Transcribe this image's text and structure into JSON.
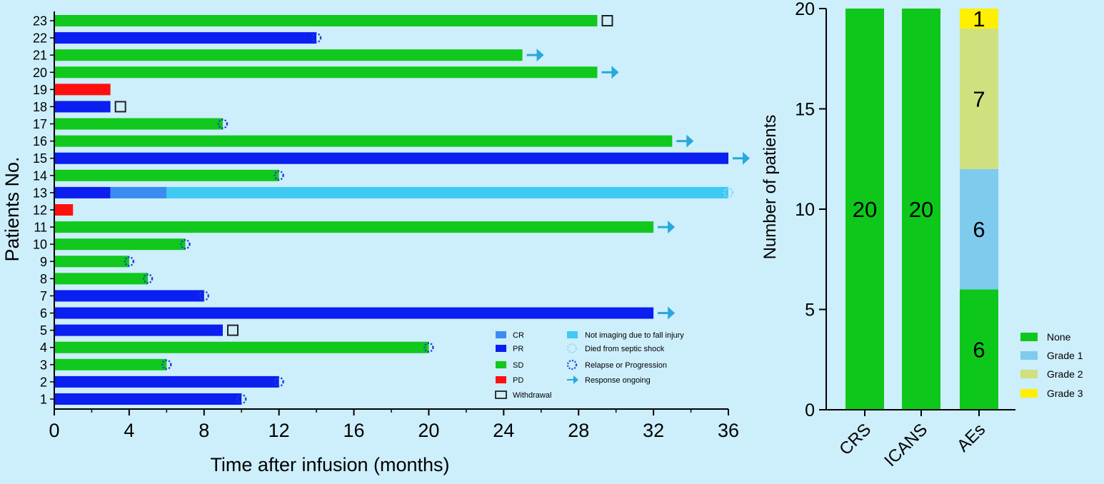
{
  "chart_data": [
    {
      "type": "swimmer",
      "xlabel": "Time after infusion (months)",
      "ylabel": "Patients No.",
      "xlim": [
        0,
        36
      ],
      "xticks": [
        0,
        4,
        8,
        12,
        16,
        20,
        24,
        28,
        32,
        36
      ],
      "colors": {
        "CR": "#3b8cf0",
        "PR": "#0a1ff0",
        "SD": "#11c81d",
        "PD": "#ff1010",
        "NI": "#3ecaf5",
        "septic": "#8ad8f3",
        "relapse": "#1a3ed8",
        "arrow": "#29a8dc",
        "withdrawal": "#222222"
      },
      "patients": [
        {
          "id": 23,
          "segments": [
            {
              "status": "SD",
              "from": 0,
              "to": 29
            }
          ],
          "end_marker": "withdrawal"
        },
        {
          "id": 22,
          "segments": [
            {
              "status": "PR",
              "from": 0,
              "to": 14
            }
          ],
          "end_marker": "relapse"
        },
        {
          "id": 21,
          "segments": [
            {
              "status": "SD",
              "from": 0,
              "to": 25
            }
          ],
          "end_marker": "ongoing"
        },
        {
          "id": 20,
          "segments": [
            {
              "status": "SD",
              "from": 0,
              "to": 29
            }
          ],
          "end_marker": "ongoing"
        },
        {
          "id": 19,
          "segments": [
            {
              "status": "PD",
              "from": 0,
              "to": 3
            }
          ],
          "end_marker": ""
        },
        {
          "id": 18,
          "segments": [
            {
              "status": "PR",
              "from": 0,
              "to": 3
            }
          ],
          "end_marker": "withdrawal"
        },
        {
          "id": 17,
          "segments": [
            {
              "status": "SD",
              "from": 0,
              "to": 9
            }
          ],
          "end_marker": "relapse"
        },
        {
          "id": 16,
          "segments": [
            {
              "status": "SD",
              "from": 0,
              "to": 33
            }
          ],
          "end_marker": "ongoing"
        },
        {
          "id": 15,
          "segments": [
            {
              "status": "PR",
              "from": 0,
              "to": 36
            }
          ],
          "end_marker": "ongoing"
        },
        {
          "id": 14,
          "segments": [
            {
              "status": "SD",
              "from": 0,
              "to": 12
            }
          ],
          "end_marker": "relapse"
        },
        {
          "id": 13,
          "segments": [
            {
              "status": "PR",
              "from": 0,
              "to": 3
            },
            {
              "status": "CR",
              "from": 3,
              "to": 6
            },
            {
              "status": "NI",
              "from": 6,
              "to": 36
            }
          ],
          "end_marker": "septic"
        },
        {
          "id": 12,
          "segments": [
            {
              "status": "PD",
              "from": 0,
              "to": 1
            }
          ],
          "end_marker": ""
        },
        {
          "id": 11,
          "segments": [
            {
              "status": "SD",
              "from": 0,
              "to": 32
            }
          ],
          "end_marker": "ongoing"
        },
        {
          "id": 10,
          "segments": [
            {
              "status": "SD",
              "from": 0,
              "to": 7
            }
          ],
          "end_marker": "relapse"
        },
        {
          "id": 9,
          "segments": [
            {
              "status": "SD",
              "from": 0,
              "to": 4
            }
          ],
          "end_marker": "relapse"
        },
        {
          "id": 8,
          "segments": [
            {
              "status": "SD",
              "from": 0,
              "to": 5
            }
          ],
          "end_marker": "relapse"
        },
        {
          "id": 7,
          "segments": [
            {
              "status": "PR",
              "from": 0,
              "to": 8
            }
          ],
          "end_marker": "relapse"
        },
        {
          "id": 6,
          "segments": [
            {
              "status": "PR",
              "from": 0,
              "to": 32
            }
          ],
          "end_marker": "ongoing"
        },
        {
          "id": 5,
          "segments": [
            {
              "status": "PR",
              "from": 0,
              "to": 9
            }
          ],
          "end_marker": "withdrawal"
        },
        {
          "id": 4,
          "segments": [
            {
              "status": "SD",
              "from": 0,
              "to": 20
            }
          ],
          "end_marker": "relapse"
        },
        {
          "id": 3,
          "segments": [
            {
              "status": "SD",
              "from": 0,
              "to": 6
            }
          ],
          "end_marker": "relapse"
        },
        {
          "id": 2,
          "segments": [
            {
              "status": "PR",
              "from": 0,
              "to": 12
            }
          ],
          "end_marker": "relapse"
        },
        {
          "id": 1,
          "segments": [
            {
              "status": "PR",
              "from": 0,
              "to": 10
            }
          ],
          "end_marker": "relapse"
        }
      ],
      "legend_left": [
        {
          "key": "CR",
          "label": "CR"
        },
        {
          "key": "PR",
          "label": "PR"
        },
        {
          "key": "SD",
          "label": "SD"
        },
        {
          "key": "PD",
          "label": "PD"
        },
        {
          "key": "withdrawal",
          "label": "Withdrawal"
        }
      ],
      "legend_right": [
        {
          "key": "NI",
          "label": "Not imaging due to fall injury"
        },
        {
          "key": "septic",
          "label": "Died from septic shock"
        },
        {
          "key": "relapse",
          "label": "Relapse or Progression"
        },
        {
          "key": "ongoing",
          "label": "Response ongoing"
        }
      ]
    },
    {
      "type": "stacked-bar",
      "ylabel": "Number of patients",
      "ylim": [
        0,
        20
      ],
      "yticks": [
        0,
        5,
        10,
        15,
        20
      ],
      "categories": [
        "CRS",
        "ICANS",
        "AEs"
      ],
      "series": [
        {
          "name": "None",
          "color": "#0dc81b",
          "values": [
            20,
            20,
            6
          ]
        },
        {
          "name": "Grade 1",
          "color": "#7ecbee",
          "values": [
            0,
            0,
            6
          ]
        },
        {
          "name": "Grade 2",
          "color": "#cfe07f",
          "values": [
            0,
            0,
            7
          ]
        },
        {
          "name": "Grade 3",
          "color": "#ffef00",
          "values": [
            0,
            0,
            1
          ]
        }
      ]
    }
  ]
}
